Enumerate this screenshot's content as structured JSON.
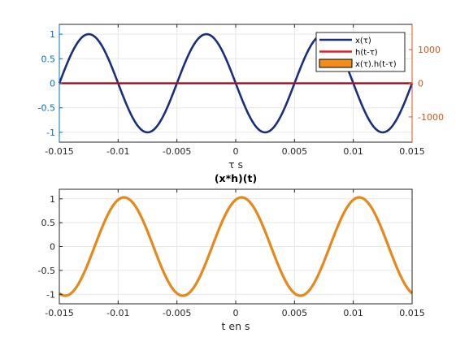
{
  "figure": {
    "background": "#ffffff"
  },
  "chart_data": [
    {
      "type": "line",
      "title": "",
      "xlabel": "τ s",
      "ylabel": "",
      "ylabel_right": "",
      "xlim": [
        -0.015,
        0.015
      ],
      "ylim": [
        -1.2,
        1.2
      ],
      "ylim_right": [
        -1750,
        1750
      ],
      "xticks": [
        -0.015,
        -0.01,
        -0.005,
        0,
        0.005,
        0.01,
        0.015
      ],
      "xtick_labels": [
        "-0.015",
        "-0.01",
        "-0.005",
        "0",
        "0.005",
        "0.01",
        "0.015"
      ],
      "yticks": [
        -1,
        -0.5,
        0,
        0.5,
        1
      ],
      "ytick_labels": [
        "-1",
        "-0.5",
        "0",
        "0.5",
        "1"
      ],
      "yticks_right": [
        -1000,
        0,
        1000
      ],
      "ytick_labels_right": [
        "-1000",
        "0",
        "1000"
      ],
      "grid": true,
      "legend_position": "top-right",
      "colors": {
        "left_axis": "#0072BD",
        "right_axis": "#D95319",
        "frame": "#262626",
        "grid": "#e6e6e6"
      },
      "series": [
        {
          "name": "x(τ)",
          "axis": "left",
          "color": "#1a2e80",
          "kind": "line",
          "amplitude": 1,
          "frequency_hz": 100,
          "phase_rad": 3.14159,
          "x_samples": {
            "start": -0.015,
            "end": 0.015,
            "count": 601
          }
        },
        {
          "name": "h(t-τ)",
          "axis": "right",
          "color": "#e11d2a",
          "kind": "line",
          "x": [
            -0.015,
            0.015
          ],
          "values": [
            0,
            0
          ]
        },
        {
          "name": "x(τ).h(t-τ)",
          "axis": "right",
          "color": "#f28c1a",
          "edge": "#000000",
          "kind": "area",
          "x": [
            -0.015,
            0.015
          ],
          "values": [
            0,
            0
          ]
        }
      ]
    },
    {
      "type": "line",
      "title": "(x*h)(t)",
      "xlabel": "t en s",
      "ylabel": "",
      "xlim": [
        -0.015,
        0.015
      ],
      "ylim": [
        -1.2,
        1.2
      ],
      "xticks": [
        -0.015,
        -0.01,
        -0.005,
        0,
        0.005,
        0.01,
        0.015
      ],
      "xtick_labels": [
        "-0.015",
        "-0.01",
        "-0.005",
        "0",
        "0.005",
        "0.01",
        "0.015"
      ],
      "yticks": [
        -1,
        -0.5,
        0,
        0.5,
        1
      ],
      "ytick_labels": [
        "-1",
        "-0.5",
        "0",
        "0.5",
        "1"
      ],
      "grid": true,
      "colors": {
        "axis": "#262626",
        "frame": "#262626",
        "grid": "#e6e6e6"
      },
      "series": [
        {
          "name": "",
          "color": "#e6891a",
          "kind": "line",
          "amplitude": 1.03,
          "frequency_hz": 100,
          "phase_rad": 1.257,
          "x_samples": {
            "start": -0.015,
            "end": 0.015,
            "count": 601
          }
        }
      ]
    }
  ]
}
